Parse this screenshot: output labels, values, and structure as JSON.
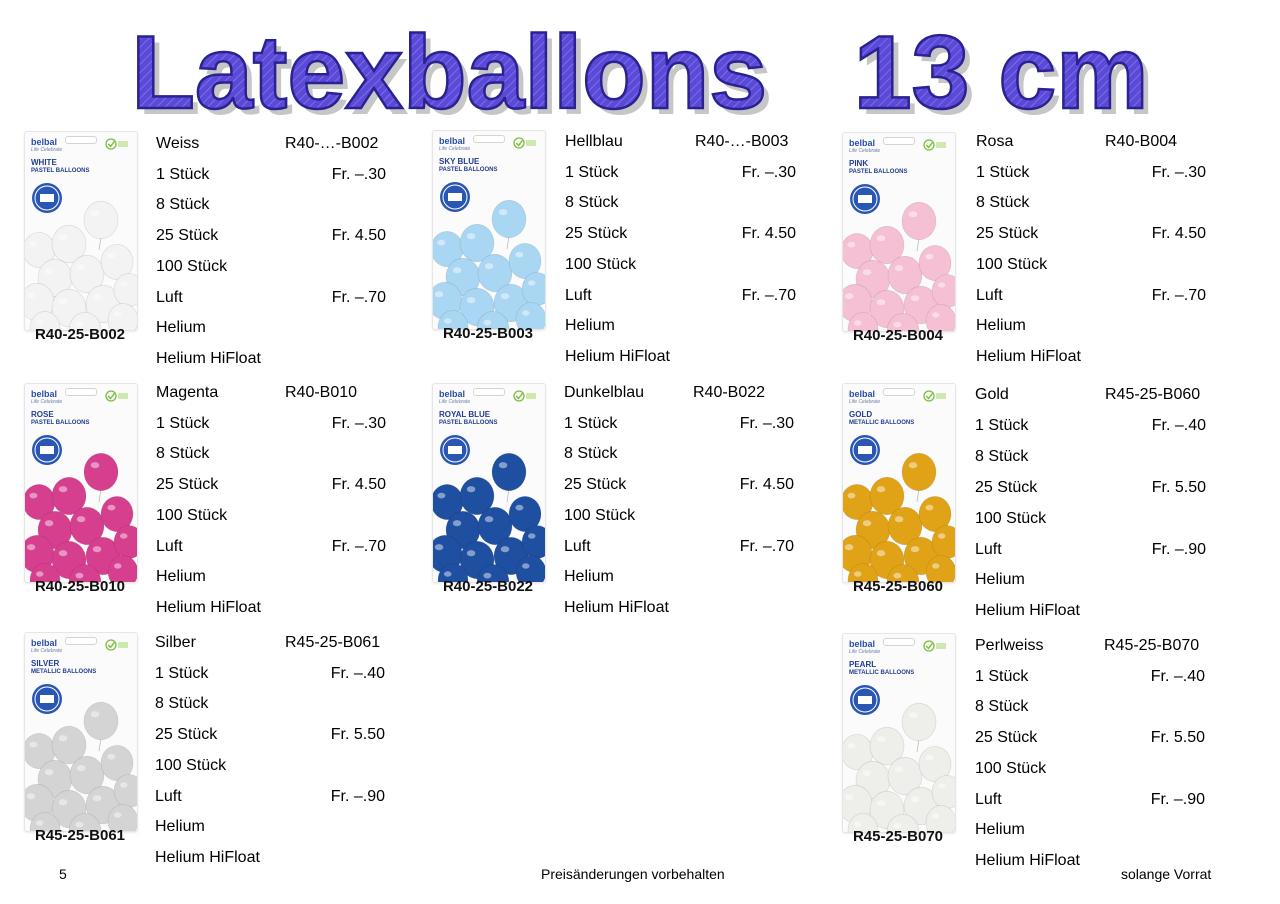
{
  "page_title": "Latexballons   13 cm",
  "colors": {
    "title_fill": "#5b4ad6",
    "title_shadow": "#c9c9c9",
    "package_brand": "#2a4fa8"
  },
  "package": {
    "brand": "belbal",
    "brand_sub": "Life Celebrate"
  },
  "products": [
    {
      "name": "Weiss",
      "code": "R40-…-B002",
      "sku": "R40-25-B002",
      "pkg_label": "WHITE",
      "pkg_type": "PASTEL BALLOONS",
      "balloon_color": "#f3f3f3",
      "rows": [
        {
          "label": "1 Stück",
          "price": "Fr. –.30"
        },
        {
          "label": "8 Stück",
          "price": ""
        },
        {
          "label": "25 Stück",
          "price": "Fr. 4.50"
        },
        {
          "label": "100 Stück",
          "price": ""
        },
        {
          "label": "Luft",
          "price": "Fr. –.70"
        },
        {
          "label": "Helium",
          "price": ""
        },
        {
          "label": "Helium HiFloat",
          "price": ""
        }
      ]
    },
    {
      "name": "Hellblau",
      "code": "R40-…-B003",
      "sku": "R40-25-B003",
      "pkg_label": "SKY BLUE",
      "pkg_type": "PASTEL BALLOONS",
      "balloon_color": "#a9d6f2",
      "rows": [
        {
          "label": "1 Stück",
          "price": "Fr. –.30"
        },
        {
          "label": "8 Stück",
          "price": ""
        },
        {
          "label": "25 Stück",
          "price": "Fr. 4.50"
        },
        {
          "label": "100 Stück",
          "price": ""
        },
        {
          "label": "Luft",
          "price": "Fr. –.70"
        },
        {
          "label": "Helium",
          "price": ""
        },
        {
          "label": "Helium HiFloat",
          "price": ""
        }
      ]
    },
    {
      "name": "Rosa",
      "code": "R40-B004",
      "sku": "R40-25-B004",
      "pkg_label": "PINK",
      "pkg_type": "PASTEL BALLOONS",
      "balloon_color": "#f5bfd4",
      "rows": [
        {
          "label": "1 Stück",
          "price": "Fr. –.30"
        },
        {
          "label": "8 Stück",
          "price": ""
        },
        {
          "label": "25 Stück",
          "price": "Fr. 4.50"
        },
        {
          "label": "100 Stück",
          "price": ""
        },
        {
          "label": "Luft",
          "price": "Fr. –.70"
        },
        {
          "label": "Helium",
          "price": ""
        },
        {
          "label": "Helium HiFloat",
          "price": ""
        }
      ]
    },
    {
      "name": "Magenta",
      "code": "R40-B010",
      "sku": "R40-25-B010",
      "pkg_label": "ROSE",
      "pkg_type": "PASTEL BALLOONS",
      "balloon_color": "#d63f8e",
      "rows": [
        {
          "label": "1 Stück",
          "price": "Fr. –.30"
        },
        {
          "label": "8 Stück",
          "price": ""
        },
        {
          "label": "25 Stück",
          "price": "Fr. 4.50"
        },
        {
          "label": "100 Stück",
          "price": ""
        },
        {
          "label": "Luft",
          "price": "Fr. –.70"
        },
        {
          "label": "Helium",
          "price": ""
        },
        {
          "label": "Helium HiFloat",
          "price": ""
        }
      ]
    },
    {
      "name": "Dunkelblau",
      "code": "R40-B022",
      "sku": "R40-25-B022",
      "pkg_label": "ROYAL BLUE",
      "pkg_type": "PASTEL BALLOONS",
      "balloon_color": "#1f4fa0",
      "rows": [
        {
          "label": "1 Stück",
          "price": "Fr. –.30"
        },
        {
          "label": "8 Stück",
          "price": ""
        },
        {
          "label": "25 Stück",
          "price": "Fr. 4.50"
        },
        {
          "label": "100 Stück",
          "price": ""
        },
        {
          "label": "Luft",
          "price": "Fr. –.70"
        },
        {
          "label": "Helium",
          "price": ""
        },
        {
          "label": "Helium HiFloat",
          "price": ""
        }
      ]
    },
    {
      "name": "Gold",
      "code": "R45-25-B060",
      "sku": "R45-25-B060",
      "pkg_label": "GOLD",
      "pkg_type": "METALLIC BALLOONS",
      "balloon_color": "#e0a318",
      "rows": [
        {
          "label": "1 Stück",
          "price": "Fr. –.40"
        },
        {
          "label": "8 Stück",
          "price": ""
        },
        {
          "label": "25 Stück",
          "price": "Fr. 5.50"
        },
        {
          "label": "100 Stück",
          "price": ""
        },
        {
          "label": "Luft",
          "price": "Fr. –.90"
        },
        {
          "label": "Helium",
          "price": ""
        },
        {
          "label": "Helium HiFloat",
          "price": ""
        }
      ]
    },
    {
      "name": "Silber",
      "code": "R45-25-B061",
      "sku": "R45-25-B061",
      "pkg_label": "SILVER",
      "pkg_type": "METALLIC BALLOONS",
      "balloon_color": "#d4d4d4",
      "rows": [
        {
          "label": "1 Stück",
          "price": "Fr. –.40"
        },
        {
          "label": "8 Stück",
          "price": ""
        },
        {
          "label": "25 Stück",
          "price": "Fr. 5.50"
        },
        {
          "label": "100 Stück",
          "price": ""
        },
        {
          "label": "Luft",
          "price": "Fr. –.90"
        },
        {
          "label": "Helium",
          "price": ""
        },
        {
          "label": "Helium HiFloat",
          "price": ""
        }
      ]
    },
    {
      "name": "Perlweiss",
      "code": "R45-25-B070",
      "sku": "R45-25-B070",
      "pkg_label": "PEARL",
      "pkg_type": "METALLIC BALLOONS",
      "balloon_color": "#eeeeea",
      "rows": [
        {
          "label": "1 Stück",
          "price": "Fr. –.40"
        },
        {
          "label": "8 Stück",
          "price": ""
        },
        {
          "label": "25 Stück",
          "price": "Fr. 5.50"
        },
        {
          "label": "100 Stück",
          "price": ""
        },
        {
          "label": "Luft",
          "price": "Fr. –.90"
        },
        {
          "label": "Helium",
          "price": ""
        },
        {
          "label": "Helium HiFloat",
          "price": ""
        }
      ]
    }
  ],
  "footer": {
    "page_number": "5",
    "center": "Preisänderungen vorbehalten",
    "right": "solange Vorrat"
  }
}
